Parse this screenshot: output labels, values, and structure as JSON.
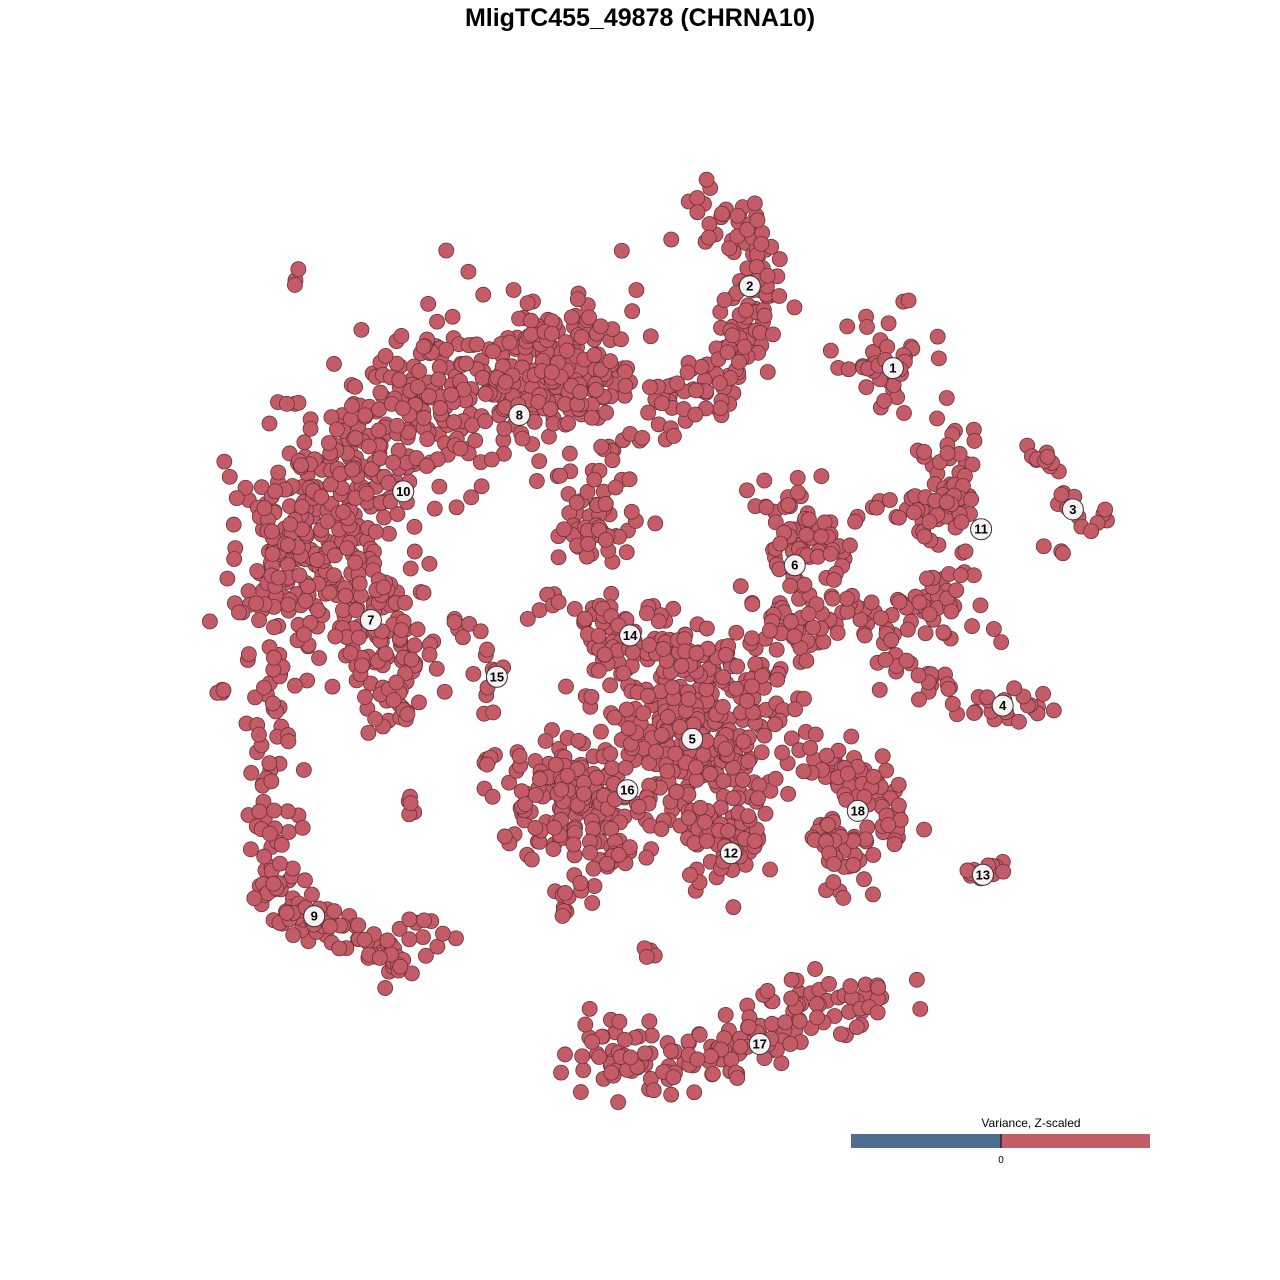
{
  "chart_data": {
    "type": "scatter",
    "title": "MligTC455_49878 (CHRNA10)",
    "xlabel": "",
    "ylabel": "",
    "axes_visible": false,
    "grid": false,
    "xlim": [
      -55,
      55
    ],
    "ylim": [
      -55,
      55
    ],
    "point_color": "#c45c68",
    "point_stroke": "#6e3038",
    "legend": {
      "title": "Variance, Z-scaled",
      "placement": "bottom-right",
      "low_color": "#4e6d90",
      "high_color": "#c45c68",
      "tick_labels": [
        "0"
      ]
    },
    "cluster_labels": [
      {
        "label": "1",
        "x": 28.1,
        "y": 29.1
      },
      {
        "label": "2",
        "x": 12.2,
        "y": 38.2
      },
      {
        "label": "3",
        "x": 48.1,
        "y": 13.4
      },
      {
        "label": "4",
        "x": 40.3,
        "y": -8.4
      },
      {
        "label": "5",
        "x": 5.8,
        "y": -12.1
      },
      {
        "label": "6",
        "x": 17.2,
        "y": 7.2
      },
      {
        "label": "7",
        "x": -29.9,
        "y": 1.1
      },
      {
        "label": "8",
        "x": -13.4,
        "y": 23.9
      },
      {
        "label": "9",
        "x": -36.2,
        "y": -31.8
      },
      {
        "label": "10",
        "x": -26.3,
        "y": 15.4
      },
      {
        "label": "11",
        "x": 37.9,
        "y": 11.2
      },
      {
        "label": "12",
        "x": 10.1,
        "y": -24.8
      },
      {
        "label": "13",
        "x": 38.1,
        "y": -27.2
      },
      {
        "label": "14",
        "x": -1.1,
        "y": -0.6
      },
      {
        "label": "15",
        "x": -15.9,
        "y": -5.2
      },
      {
        "label": "16",
        "x": -1.4,
        "y": -17.8
      },
      {
        "label": "17",
        "x": 13.3,
        "y": -46
      },
      {
        "label": "18",
        "x": 24.2,
        "y": -20.1
      }
    ],
    "point_groups": [
      {
        "path": [
          [
            5.6,
            47.8
          ],
          [
            11.1,
            45.6
          ],
          [
            13.3,
            41.1
          ],
          [
            13.3,
            35.6
          ],
          [
            11.1,
            31.1
          ],
          [
            7.8,
            26.7
          ],
          [
            2.8,
            23.9
          ]
        ],
        "n": 150,
        "spread": 1.8
      },
      {
        "path": [
          [
            27.2,
            29.4
          ]
        ],
        "n": 40,
        "spread": 2.6
      },
      {
        "path": [
          [
            34,
            25.8
          ]
        ],
        "n": 1,
        "spread": 0.1
      },
      {
        "path": [
          [
            33.3,
            21.1
          ],
          [
            34.4,
            15.6
          ],
          [
            33.3,
            12.2
          ],
          [
            27.8,
            14.4
          ]
        ],
        "n": 80,
        "spread": 1.6
      },
      {
        "path": [
          [
            36.1,
            7.8
          ],
          [
            33.3,
            3.3
          ],
          [
            30,
            1.7
          ],
          [
            39.4,
            0
          ]
        ],
        "n": 50,
        "spread": 1.4
      },
      {
        "path": [
          [
            43.3,
            20.2
          ],
          [
            45.3,
            17.8
          ],
          [
            46.7,
            13.3
          ],
          [
            51.1,
            12.4
          ],
          [
            45.6,
            10.6
          ]
        ],
        "n": 25,
        "spread": 0.9
      },
      {
        "path": [
          [
            24.4,
            2.8
          ],
          [
            27.2,
            -2.2
          ],
          [
            33.3,
            -6.7
          ],
          [
            40,
            -8.9
          ],
          [
            46.1,
            -8.7
          ]
        ],
        "n": 60,
        "spread": 1
      },
      {
        "path": [
          [
            14.4,
            12.2
          ],
          [
            20,
            10
          ],
          [
            17.8,
            3.3
          ],
          [
            14.4,
            -3.3
          ]
        ],
        "n": 130,
        "spread": 2.8
      },
      {
        "path": [
          [
            -4.4,
            27.8
          ],
          [
            -8.9,
            28.9
          ],
          [
            -17.8,
            27.8
          ],
          [
            -26.7,
            23.3
          ],
          [
            -34.4,
            16.7
          ],
          [
            -37.8,
            10
          ],
          [
            -37.8,
            3.3
          ]
        ],
        "n": 700,
        "spread": 4
      },
      {
        "path": [
          [
            -5.6,
            17.8
          ],
          [
            -4.4,
            12.2
          ],
          [
            -5.6,
            8.9
          ]
        ],
        "n": 60,
        "spread": 2
      },
      {
        "path": [
          [
            -28.9,
            5.6
          ],
          [
            -27.8,
            -2.2
          ],
          [
            -27.2,
            -10
          ]
        ],
        "n": 120,
        "spread": 2.6
      },
      {
        "path": [
          [
            -40.6,
            -1.1
          ],
          [
            -41.1,
            -10
          ],
          [
            -41.3,
            -21.1
          ],
          [
            -40.6,
            -27.8
          ],
          [
            -37.8,
            -32.2
          ],
          [
            -32.2,
            -34.4
          ],
          [
            -26.7,
            -36.7
          ],
          [
            -23.3,
            -32.2
          ]
        ],
        "n": 160,
        "spread": 1.4
      },
      {
        "path": [
          [
            -46.7,
            -6.7
          ]
        ],
        "n": 4,
        "spread": 0.4
      },
      {
        "path": [
          [
            -38.3,
            39.4
          ]
        ],
        "n": 3,
        "spread": 0.4
      },
      {
        "path": [
          [
            -25.6,
            -19.4
          ]
        ],
        "n": 5,
        "spread": 0.5
      },
      {
        "path": [
          [
            -20,
            0.6
          ],
          [
            -16.7,
            -2.2
          ],
          [
            -16.1,
            -5.6
          ],
          [
            -18,
            -8.3
          ]
        ],
        "n": 18,
        "spread": 0.8
      },
      {
        "path": [
          [
            -12.2,
            2
          ],
          [
            -4.4,
            2.2
          ],
          [
            -2.2,
            -1.1
          ],
          [
            -3.3,
            -3.3
          ]
        ],
        "n": 50,
        "spread": 1.5
      },
      {
        "path": [
          [
            5.6,
            -11.1
          ]
        ],
        "n": 350,
        "spread": 5.5
      },
      {
        "path": [
          [
            1.1,
            -1.1
          ],
          [
            6.7,
            -3.3
          ]
        ],
        "n": 30,
        "spread": 1.5
      },
      {
        "path": [
          [
            -4.4,
            -17.8
          ],
          [
            -11.1,
            -20
          ]
        ],
        "n": 150,
        "spread": 3
      },
      {
        "path": [
          [
            -2.2,
            -23.3
          ],
          [
            -8.9,
            -31.1
          ]
        ],
        "n": 25,
        "spread": 1
      },
      {
        "path": [
          [
            8.9,
            -23.3
          ]
        ],
        "n": 70,
        "spread": 2.4
      },
      {
        "path": [
          [
            18.9,
            -13.3
          ],
          [
            24.4,
            -15.6
          ],
          [
            26.7,
            -18.9
          ],
          [
            28.9,
            -23.3
          ],
          [
            22.2,
            -27.8
          ]
        ],
        "n": 70,
        "spread": 1.6
      },
      {
        "path": [
          [
            21.1,
            -22.2
          ],
          [
            21.7,
            -27.8
          ]
        ],
        "n": 30,
        "spread": 1.4
      },
      {
        "path": [
          [
            35.6,
            -27.8
          ],
          [
            41.1,
            -25.8
          ]
        ],
        "n": 12,
        "spread": 0.7
      },
      {
        "path": [
          [
            -6.7,
            -48.3
          ],
          [
            1.1,
            -47.8
          ],
          [
            8.9,
            -46.7
          ],
          [
            17.8,
            -42.2
          ],
          [
            27.8,
            -42.2
          ]
        ],
        "n": 170,
        "spread": 2
      },
      {
        "path": [
          [
            0.6,
            -35.6
          ]
        ],
        "n": 4,
        "spread": 0.5
      },
      {
        "path": [
          [
            -16.7,
            -14.4
          ]
        ],
        "n": 6,
        "spread": 0.6
      }
    ]
  }
}
